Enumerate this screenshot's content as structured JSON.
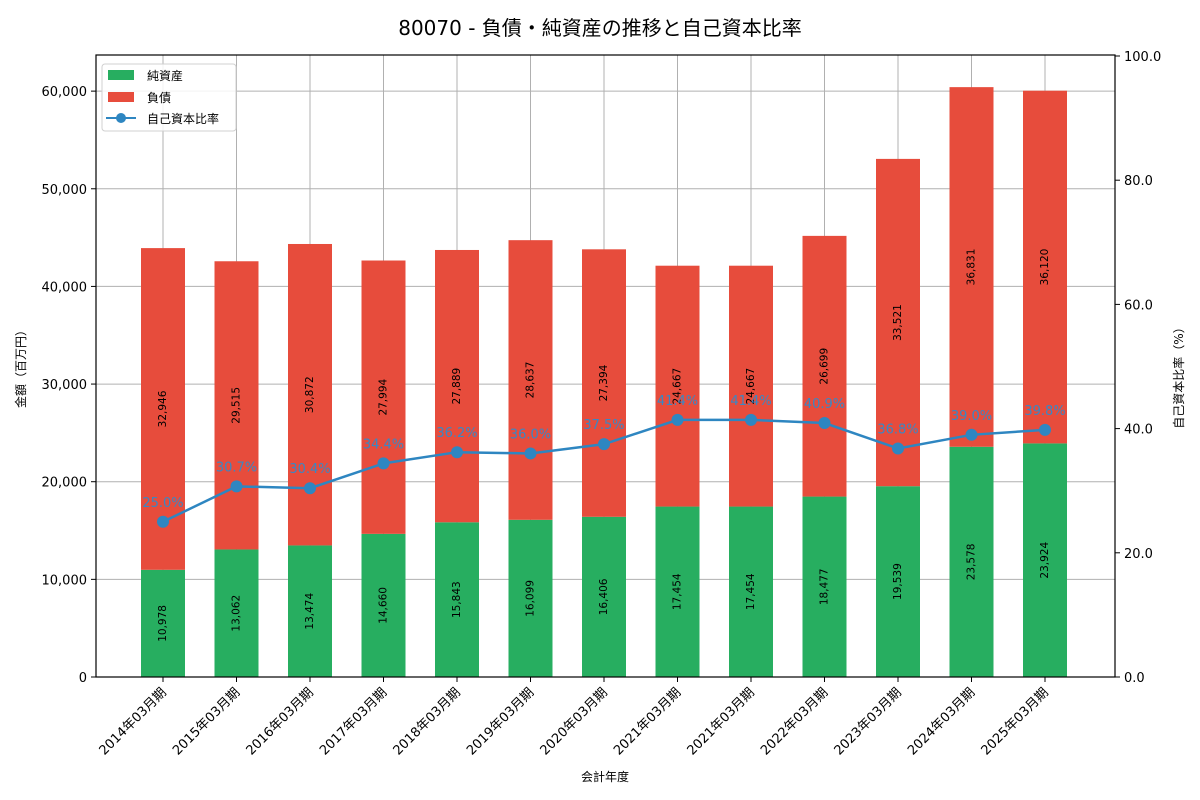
{
  "title": "80070 - 負債・純資産の推移と自己資本比率",
  "colors": {
    "net_assets": "#27ae60",
    "liabilities": "#e74c3c",
    "equity_ratio": "#2e86c1",
    "grid": "#b0b0b0"
  },
  "legend": {
    "net_assets": "純資産",
    "liabilities": "負債",
    "equity_ratio": "自己資本比率"
  },
  "axes": {
    "x_title": "会計年度",
    "y_left_title": "金額（百万円）",
    "y_right_title": "自己資本比率（%）",
    "y_left_ticks": [
      "0",
      "10,000",
      "20,000",
      "30,000",
      "40,000",
      "50,000",
      "60,000"
    ],
    "y_right_ticks": [
      "0.0",
      "20.0",
      "40.0",
      "60.0",
      "80.0",
      "100.0"
    ]
  },
  "chart_data": {
    "type": "bar",
    "title": "80070 - 負債・純資産の推移と自己資本比率",
    "xlabel": "会計年度",
    "ylabel": "金額（百万円）",
    "ylabel_right": "自己資本比率（%）",
    "ylim": [
      0,
      63700
    ],
    "ylim_right": [
      0,
      100
    ],
    "stacked": true,
    "grid": true,
    "legend_position": "upper left",
    "categories": [
      "2014年03月期",
      "2015年03月期",
      "2016年03月期",
      "2017年03月期",
      "2018年03月期",
      "2019年03月期",
      "2020年03月期",
      "2021年03月期",
      "2021年03月期",
      "2022年03月期",
      "2023年03月期",
      "2024年03月期",
      "2025年03月期"
    ],
    "series": [
      {
        "name": "純資産",
        "type": "bar",
        "axis": "left",
        "values": [
          10978,
          13062,
          13474,
          14660,
          15843,
          16099,
          16406,
          17454,
          17454,
          18477,
          19539,
          23578,
          23924
        ]
      },
      {
        "name": "負債",
        "type": "bar",
        "axis": "left",
        "values": [
          32946,
          29515,
          30872,
          27994,
          27889,
          28637,
          27394,
          24667,
          24667,
          26699,
          33521,
          36831,
          36120
        ]
      },
      {
        "name": "自己資本比率",
        "type": "line",
        "axis": "right",
        "values": [
          25.0,
          30.7,
          30.4,
          34.4,
          36.2,
          36.0,
          37.5,
          41.4,
          41.4,
          40.9,
          36.8,
          39.0,
          39.8
        ]
      }
    ],
    "labels": {
      "net_assets": [
        "10,978",
        "13,062",
        "13,474",
        "14,660",
        "15,843",
        "16,099",
        "16,406",
        "17,454",
        "17,454",
        "18,477",
        "19,539",
        "23,578",
        "23,924"
      ],
      "liabilities": [
        "32,946",
        "29,515",
        "30,872",
        "27,994",
        "27,889",
        "28,637",
        "27,394",
        "24,667",
        "24,667",
        "26,699",
        "33,521",
        "36,831",
        "36,120"
      ],
      "equity_ratio": [
        "25.0%",
        "30.7%",
        "30.4%",
        "34.4%",
        "36.2%",
        "36.0%",
        "37.5%",
        "41.4%",
        "41.4%",
        "40.9%",
        "36.8%",
        "39.0%",
        "39.8%"
      ]
    }
  }
}
